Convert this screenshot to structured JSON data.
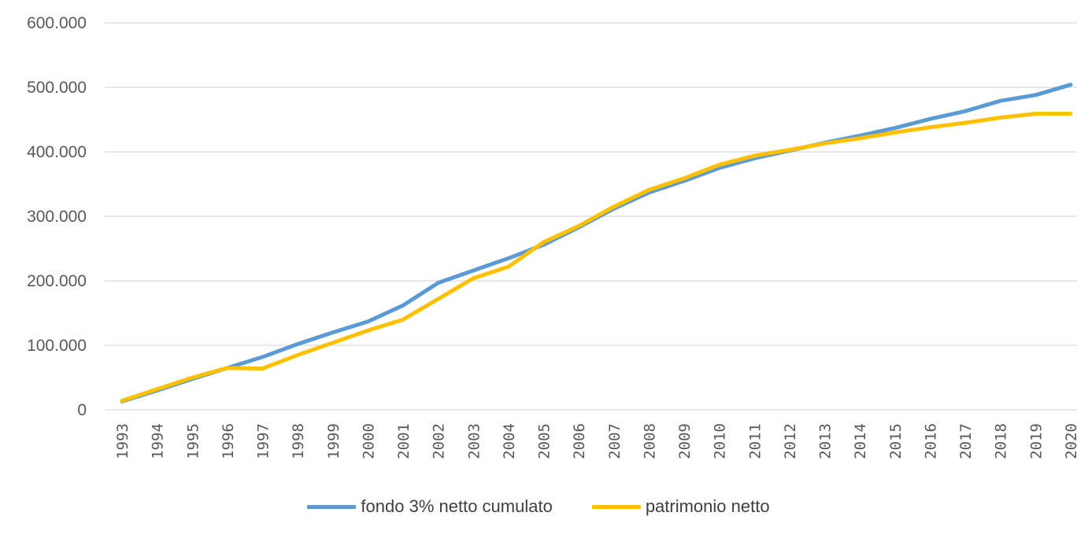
{
  "chart_data": {
    "type": "line",
    "title": "",
    "xlabel": "",
    "ylabel": "",
    "x": [
      "1993",
      "1994",
      "1995",
      "1996",
      "1997",
      "1998",
      "1999",
      "2000",
      "2001",
      "2002",
      "2003",
      "2004",
      "2005",
      "2006",
      "2007",
      "2008",
      "2009",
      "2010",
      "2011",
      "2012",
      "2013",
      "2014",
      "2015",
      "2016",
      "2017",
      "2018",
      "2019",
      "2020"
    ],
    "ylim": [
      0,
      600000
    ],
    "yticks": [
      0,
      100000,
      200000,
      300000,
      400000,
      500000,
      600000
    ],
    "ytick_labels": [
      "0",
      "100.000",
      "200.000",
      "300.000",
      "400.000",
      "500.000",
      "600.000"
    ],
    "grid": "horizontal",
    "legend_position": "bottom",
    "series": [
      {
        "name": "fondo 3% netto cumulato",
        "color": "#5b9bd5",
        "values": [
          13000,
          30000,
          48000,
          65000,
          82000,
          102000,
          120000,
          137000,
          162000,
          197000,
          216000,
          235000,
          256000,
          283000,
          312000,
          337000,
          355000,
          375000,
          390000,
          402000,
          414000,
          425000,
          437000,
          451000,
          463000,
          479000,
          488000,
          504000
        ]
      },
      {
        "name": "patrimonio netto",
        "color": "#ffc000",
        "values": [
          14000,
          32000,
          50000,
          65000,
          64000,
          85000,
          104000,
          123000,
          140000,
          172000,
          204000,
          222000,
          260000,
          285000,
          315000,
          341000,
          359000,
          380000,
          394000,
          403000,
          413000,
          421000,
          430000,
          438000,
          445000,
          453000,
          459000,
          459000
        ]
      }
    ]
  }
}
